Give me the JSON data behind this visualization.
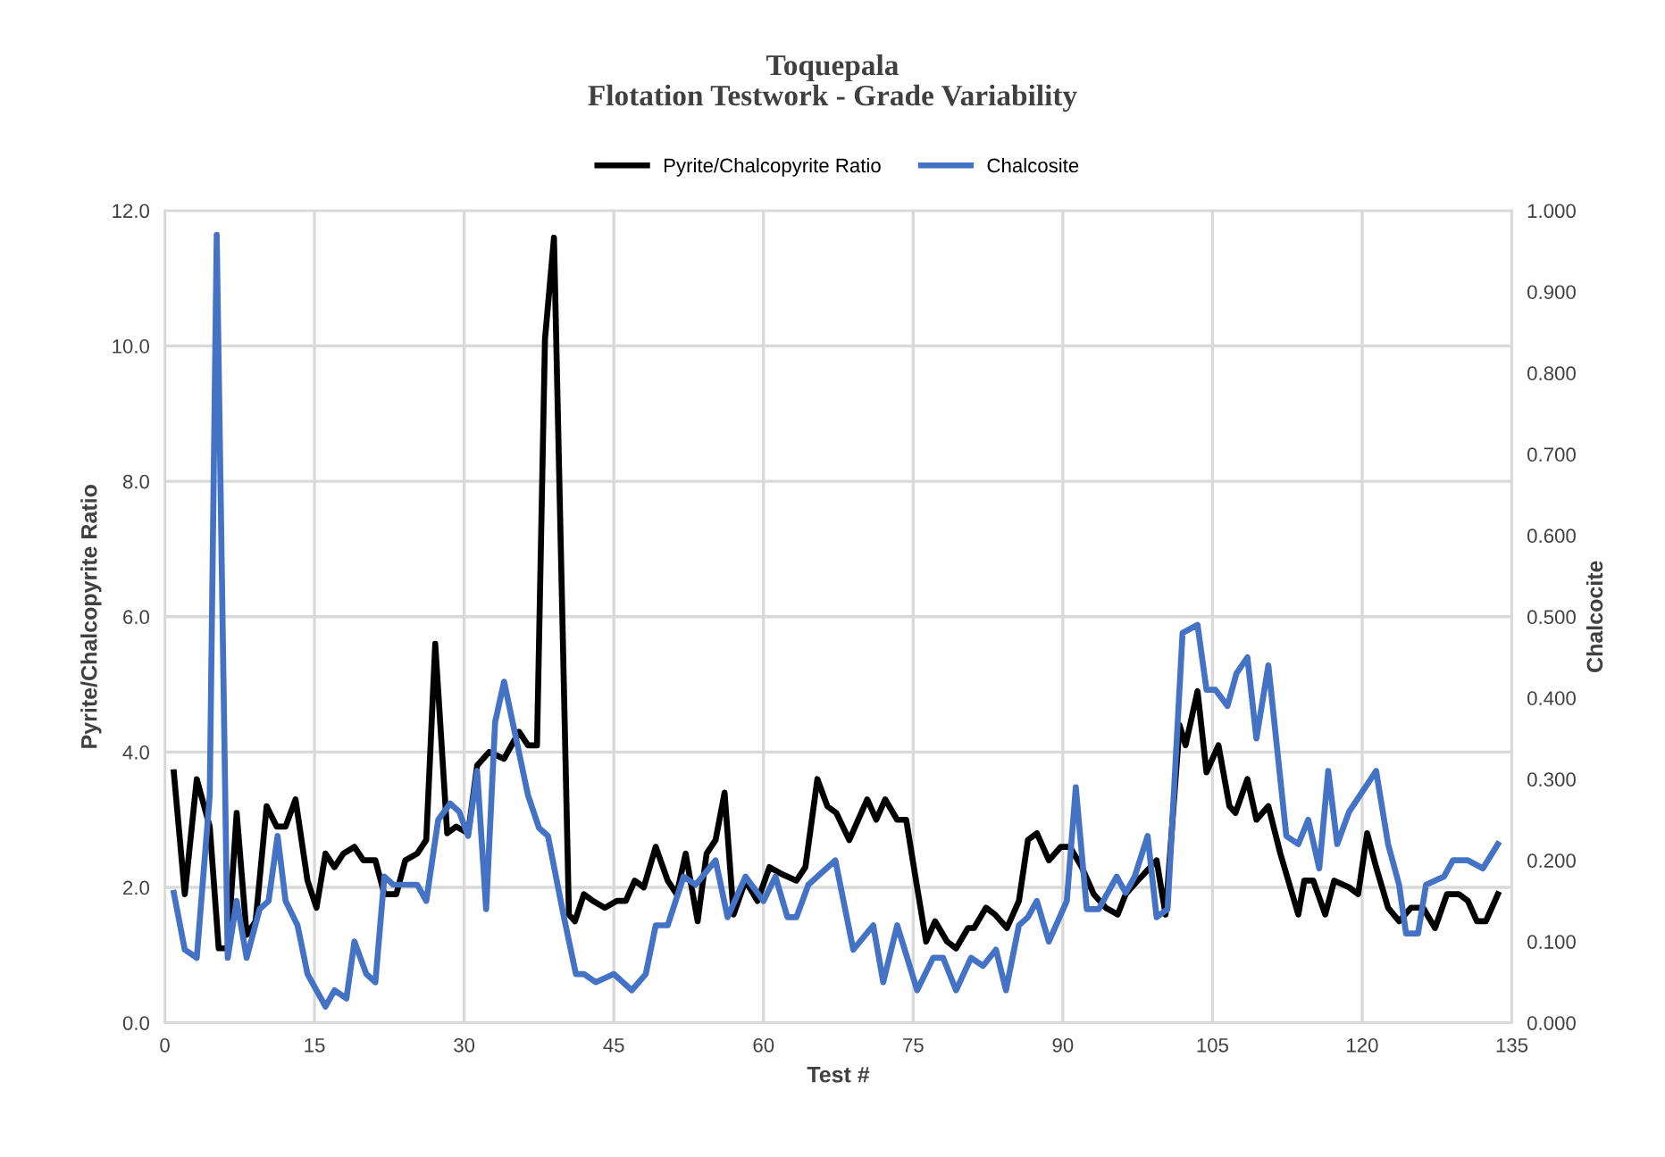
{
  "chart_data": {
    "type": "line",
    "title": "Toquepala",
    "subtitle": "Flotation Testwork - Grade Variability",
    "xlabel": "Test #",
    "ylabel": "Pyrite/Chalcopyrite Ratio",
    "y2label": "Chalcocite",
    "xlim": [
      0,
      135
    ],
    "xticks": [
      0,
      15,
      30,
      45,
      60,
      75,
      90,
      105,
      120,
      135
    ],
    "ylim": [
      0,
      12
    ],
    "yticks": [
      {
        "value": 0,
        "label": "0.0"
      },
      {
        "value": 2,
        "label": "2.0"
      },
      {
        "value": 4,
        "label": "4.0"
      },
      {
        "value": 6,
        "label": "6.0"
      },
      {
        "value": 8,
        "label": "8.0"
      },
      {
        "value": 10,
        "label": "10.0"
      },
      {
        "value": 12,
        "label": "12.0"
      }
    ],
    "y2lim": [
      0,
      1
    ],
    "y2ticks": [
      {
        "value": 0,
        "label": "0.000"
      },
      {
        "value": 0.1,
        "label": "0.100"
      },
      {
        "value": 0.2,
        "label": "0.200"
      },
      {
        "value": 0.3,
        "label": "0.300"
      },
      {
        "value": 0.4,
        "label": "0.400"
      },
      {
        "value": 0.5,
        "label": "0.500"
      },
      {
        "value": 0.6,
        "label": "0.600"
      },
      {
        "value": 0.7,
        "label": "0.700"
      },
      {
        "value": 0.8,
        "label": "0.800"
      },
      {
        "value": 0.9,
        "label": "0.900"
      },
      {
        "value": 1,
        "label": "1.000"
      }
    ],
    "grid": true,
    "legend": "top",
    "marker": "none",
    "line_style": "solid",
    "series": [
      {
        "name": "Pyrite/Chalcopyrite Ratio",
        "color": "#000000",
        "x": [
          0.9,
          2,
          3.2,
          4.5,
          5.4,
          6.3,
          7.2,
          8.2,
          9.1,
          10.2,
          11.2,
          12.1,
          13.1,
          14.3,
          15.2,
          16.1,
          17,
          17.9,
          19,
          19.9,
          21.1,
          22,
          23.2,
          24.1,
          25.3,
          26.2,
          27.1,
          28.3,
          29.2,
          30.4,
          31.3,
          32.5,
          34,
          35.5,
          36.4,
          37.3,
          38.1,
          39,
          40.5,
          41.1,
          42,
          42.9,
          44.1,
          45.3,
          46.2,
          47.1,
          48,
          49.2,
          50.4,
          51.3,
          52.2,
          53.4,
          54.3,
          55.2,
          56.1,
          57,
          58.2,
          59.4,
          60.6,
          61.8,
          63.3,
          64.2,
          65.4,
          66.4,
          67.3,
          68.6,
          70.4,
          71.3,
          72.2,
          73.4,
          74.3,
          75.4,
          76.3,
          77.2,
          78.4,
          79.3,
          80.5,
          81.1,
          82.3,
          83.2,
          84.4,
          85.6,
          86.5,
          87.4,
          88.6,
          89.8,
          90.7,
          91.9,
          93.1,
          94.3,
          95.5,
          96.3,
          97.5,
          99.4,
          100.3,
          101.7,
          102.3,
          103.5,
          104.4,
          105.6,
          106.7,
          107.3,
          108.5,
          109.4,
          110.6,
          111.8,
          113.6,
          114.2,
          115.1,
          116.3,
          117.2,
          118.7,
          119.6,
          120.5,
          121.4,
          122.6,
          123.7,
          124.9,
          126.1,
          127.3,
          128.5,
          129.7,
          130.6,
          131.5,
          132.4,
          133.6
        ],
        "values": [
          3.7,
          1.9,
          3.6,
          2.9,
          1.1,
          1.1,
          3.1,
          1.3,
          1.5,
          3.2,
          2.9,
          2.9,
          3.3,
          2.1,
          1.7,
          2.5,
          2.3,
          2.5,
          2.6,
          2.4,
          2.4,
          1.9,
          1.9,
          2.4,
          2.5,
          2.7,
          5.6,
          2.8,
          2.9,
          2.8,
          3.8,
          4.0,
          3.9,
          4.3,
          4.1,
          4.1,
          10.1,
          11.6,
          1.6,
          1.5,
          1.9,
          1.8,
          1.7,
          1.8,
          1.8,
          2.1,
          2.0,
          2.6,
          2.1,
          1.9,
          2.5,
          1.5,
          2.5,
          2.7,
          3.4,
          1.6,
          2.1,
          1.8,
          2.3,
          2.2,
          2.1,
          2.3,
          3.6,
          3.2,
          3.1,
          2.7,
          3.3,
          3.0,
          3.3,
          3.0,
          3.0,
          2.0,
          1.2,
          1.5,
          1.2,
          1.1,
          1.4,
          1.4,
          1.7,
          1.6,
          1.4,
          1.8,
          2.7,
          2.8,
          2.4,
          2.6,
          2.6,
          2.3,
          1.9,
          1.7,
          1.6,
          1.9,
          2.1,
          2.4,
          1.6,
          4.4,
          4.1,
          4.9,
          3.7,
          4.1,
          3.2,
          3.1,
          3.6,
          3.0,
          3.2,
          2.5,
          1.6,
          2.1,
          2.1,
          1.6,
          2.1,
          2.0,
          1.9,
          2.8,
          2.3,
          1.7,
          1.5,
          1.7,
          1.7,
          1.4,
          1.9,
          1.9,
          1.8,
          1.5,
          1.5,
          1.9
        ]
      },
      {
        "name": "Chalcosite",
        "color": "#4472c4",
        "axis": "y2",
        "x": [
          0.9,
          2,
          3.2,
          4.5,
          5.2,
          6.3,
          7.2,
          8.2,
          9.5,
          10.4,
          11.3,
          12.1,
          13.3,
          14.3,
          16.1,
          17,
          18.2,
          19,
          20.2,
          21.1,
          22,
          22.9,
          24.1,
          25.3,
          26.2,
          27.4,
          28.6,
          29.5,
          30.4,
          31.3,
          32.2,
          33.1,
          34,
          35.2,
          36.4,
          37.5,
          38.4,
          40,
          41.2,
          42,
          43.2,
          45,
          46.8,
          48.2,
          49.2,
          50.4,
          52,
          53.2,
          55.2,
          56.4,
          58.2,
          60,
          61.2,
          62.4,
          63.3,
          64.5,
          67.2,
          69,
          71,
          72,
          73.4,
          75.4,
          77,
          78,
          79.3,
          80.8,
          82,
          83.3,
          84.3,
          85.6,
          86.5,
          87.4,
          88.6,
          90.4,
          91.3,
          92.4,
          93.6,
          95.4,
          96.3,
          97.2,
          98.5,
          99.4,
          100.5,
          102,
          103.5,
          104.4,
          105.3,
          106.5,
          107.4,
          108.5,
          109.4,
          110.6,
          112.4,
          113.6,
          114.6,
          115.7,
          116.6,
          117.5,
          118.7,
          121.4,
          122.6,
          123.7,
          124.4,
          125.6,
          126.4,
          128.2,
          129.1,
          130.6,
          132.1,
          133.6
        ],
        "values": [
          0.16,
          0.09,
          0.08,
          0.28,
          0.97,
          0.08,
          0.15,
          0.08,
          0.14,
          0.15,
          0.23,
          0.15,
          0.12,
          0.06,
          0.02,
          0.04,
          0.03,
          0.1,
          0.06,
          0.05,
          0.18,
          0.17,
          0.17,
          0.17,
          0.15,
          0.25,
          0.27,
          0.26,
          0.23,
          0.31,
          0.14,
          0.37,
          0.42,
          0.35,
          0.28,
          0.24,
          0.23,
          0.13,
          0.06,
          0.06,
          0.05,
          0.06,
          0.04,
          0.06,
          0.12,
          0.12,
          0.18,
          0.17,
          0.2,
          0.13,
          0.18,
          0.15,
          0.18,
          0.13,
          0.13,
          0.17,
          0.2,
          0.09,
          0.12,
          0.05,
          0.12,
          0.04,
          0.08,
          0.08,
          0.04,
          0.08,
          0.07,
          0.09,
          0.04,
          0.12,
          0.13,
          0.15,
          0.1,
          0.15,
          0.29,
          0.14,
          0.14,
          0.18,
          0.16,
          0.18,
          0.23,
          0.13,
          0.14,
          0.48,
          0.49,
          0.41,
          0.41,
          0.39,
          0.43,
          0.45,
          0.35,
          0.44,
          0.23,
          0.22,
          0.25,
          0.19,
          0.31,
          0.22,
          0.26,
          0.31,
          0.22,
          0.17,
          0.11,
          0.11,
          0.17,
          0.18,
          0.2,
          0.2,
          0.19,
          0.22
        ]
      }
    ]
  }
}
